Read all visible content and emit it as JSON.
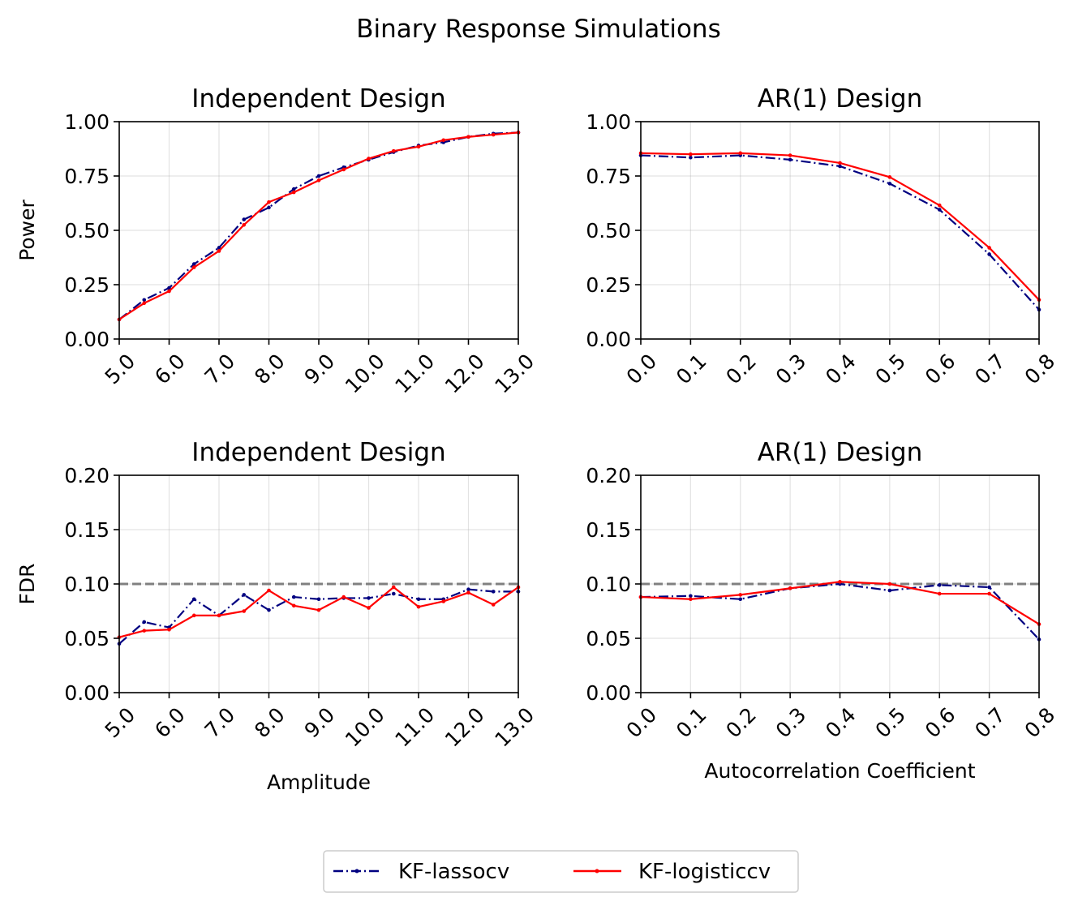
{
  "figure": {
    "suptitle": "Binary Response Simulations",
    "legend": {
      "entries": [
        {
          "label": "KF-lassocv",
          "color": "#000080",
          "style": "dashdot"
        },
        {
          "label": "KF-logisticcv",
          "color": "#ff0000",
          "style": "solid"
        }
      ],
      "placement": "bottom-center"
    },
    "threshold_color": "#808080"
  },
  "chart_data": [
    {
      "id": "indep-power",
      "type": "line",
      "title": "Independent Design",
      "xlabel": "",
      "ylabel": "Power",
      "xlim": [
        5,
        13
      ],
      "ylim": [
        0,
        1
      ],
      "xticks": [
        5,
        6,
        7,
        8,
        9,
        10,
        11,
        12,
        13
      ],
      "xtick_labels": [
        "5.0",
        "6.0",
        "7.0",
        "8.0",
        "9.0",
        "10.0",
        "11.0",
        "12.0",
        "13.0"
      ],
      "yticks": [
        0,
        0.25,
        0.5,
        0.75,
        1.0
      ],
      "ytick_labels": [
        "0.00",
        "0.25",
        "0.50",
        "0.75",
        "1.00"
      ],
      "grid": true,
      "x": [
        5,
        5.5,
        6,
        6.5,
        7,
        7.5,
        8,
        8.5,
        9,
        9.5,
        10,
        10.5,
        11,
        11.5,
        12,
        12.5,
        13
      ],
      "series": [
        {
          "name": "KF-lassocv",
          "values": [
            0.09,
            0.18,
            0.235,
            0.345,
            0.42,
            0.55,
            0.605,
            0.69,
            0.75,
            0.79,
            0.825,
            0.86,
            0.89,
            0.905,
            0.93,
            0.945,
            0.95
          ]
        },
        {
          "name": "KF-logisticcv",
          "values": [
            0.09,
            0.165,
            0.22,
            0.33,
            0.405,
            0.525,
            0.63,
            0.675,
            0.73,
            0.78,
            0.83,
            0.865,
            0.885,
            0.915,
            0.93,
            0.94,
            0.95
          ]
        }
      ]
    },
    {
      "id": "ar1-power",
      "type": "line",
      "title": "AR(1) Design",
      "xlabel": "",
      "ylabel": "",
      "xlim": [
        0,
        0.8
      ],
      "ylim": [
        0,
        1
      ],
      "xticks": [
        0,
        0.1,
        0.2,
        0.3,
        0.4,
        0.5,
        0.6,
        0.7,
        0.8
      ],
      "xtick_labels": [
        "0.0",
        "0.1",
        "0.2",
        "0.3",
        "0.4",
        "0.5",
        "0.6",
        "0.7",
        "0.8"
      ],
      "yticks": [
        0,
        0.25,
        0.5,
        0.75,
        1.0
      ],
      "ytick_labels": [
        "0.00",
        "0.25",
        "0.50",
        "0.75",
        "1.00"
      ],
      "grid": true,
      "x": [
        0,
        0.1,
        0.2,
        0.3,
        0.4,
        0.5,
        0.6,
        0.7,
        0.8
      ],
      "series": [
        {
          "name": "KF-lassocv",
          "values": [
            0.845,
            0.835,
            0.845,
            0.825,
            0.795,
            0.715,
            0.595,
            0.39,
            0.135
          ]
        },
        {
          "name": "KF-logisticcv",
          "values": [
            0.855,
            0.85,
            0.855,
            0.845,
            0.81,
            0.745,
            0.615,
            0.42,
            0.18
          ]
        }
      ]
    },
    {
      "id": "indep-fdr",
      "type": "line",
      "title": "Independent Design",
      "xlabel": "Amplitude",
      "ylabel": "FDR",
      "xlim": [
        5,
        13
      ],
      "ylim": [
        0,
        0.2
      ],
      "xticks": [
        5,
        6,
        7,
        8,
        9,
        10,
        11,
        12,
        13
      ],
      "xtick_labels": [
        "5.0",
        "6.0",
        "7.0",
        "8.0",
        "9.0",
        "10.0",
        "11.0",
        "12.0",
        "13.0"
      ],
      "yticks": [
        0,
        0.05,
        0.1,
        0.15,
        0.2
      ],
      "ytick_labels": [
        "0.00",
        "0.05",
        "0.10",
        "0.15",
        "0.20"
      ],
      "grid": true,
      "threshold": 0.1,
      "x": [
        5,
        5.5,
        6,
        6.5,
        7,
        7.5,
        8,
        8.5,
        9,
        9.5,
        10,
        10.5,
        11,
        11.5,
        12,
        12.5,
        13
      ],
      "series": [
        {
          "name": "KF-lassocv",
          "values": [
            0.045,
            0.065,
            0.06,
            0.086,
            0.071,
            0.09,
            0.076,
            0.088,
            0.086,
            0.087,
            0.087,
            0.091,
            0.086,
            0.086,
            0.095,
            0.093,
            0.093
          ]
        },
        {
          "name": "KF-logisticcv",
          "values": [
            0.051,
            0.057,
            0.058,
            0.071,
            0.071,
            0.075,
            0.094,
            0.08,
            0.076,
            0.088,
            0.078,
            0.097,
            0.079,
            0.084,
            0.092,
            0.081,
            0.097
          ]
        }
      ]
    },
    {
      "id": "ar1-fdr",
      "type": "line",
      "title": "AR(1) Design",
      "xlabel": "Autocorrelation Coefficient",
      "ylabel": "",
      "xlim": [
        0,
        0.8
      ],
      "ylim": [
        0,
        0.2
      ],
      "xticks": [
        0,
        0.1,
        0.2,
        0.3,
        0.4,
        0.5,
        0.6,
        0.7,
        0.8
      ],
      "xtick_labels": [
        "0.0",
        "0.1",
        "0.2",
        "0.3",
        "0.4",
        "0.5",
        "0.6",
        "0.7",
        "0.8"
      ],
      "yticks": [
        0,
        0.05,
        0.1,
        0.15,
        0.2
      ],
      "ytick_labels": [
        "0.00",
        "0.05",
        "0.10",
        "0.15",
        "0.20"
      ],
      "grid": true,
      "threshold": 0.1,
      "x": [
        0,
        0.1,
        0.2,
        0.3,
        0.4,
        0.5,
        0.6,
        0.7,
        0.8
      ],
      "series": [
        {
          "name": "KF-lassocv",
          "values": [
            0.088,
            0.089,
            0.086,
            0.096,
            0.1,
            0.094,
            0.099,
            0.097,
            0.049
          ]
        },
        {
          "name": "KF-logisticcv",
          "values": [
            0.088,
            0.086,
            0.09,
            0.096,
            0.102,
            0.1,
            0.091,
            0.091,
            0.063
          ]
        }
      ]
    }
  ]
}
